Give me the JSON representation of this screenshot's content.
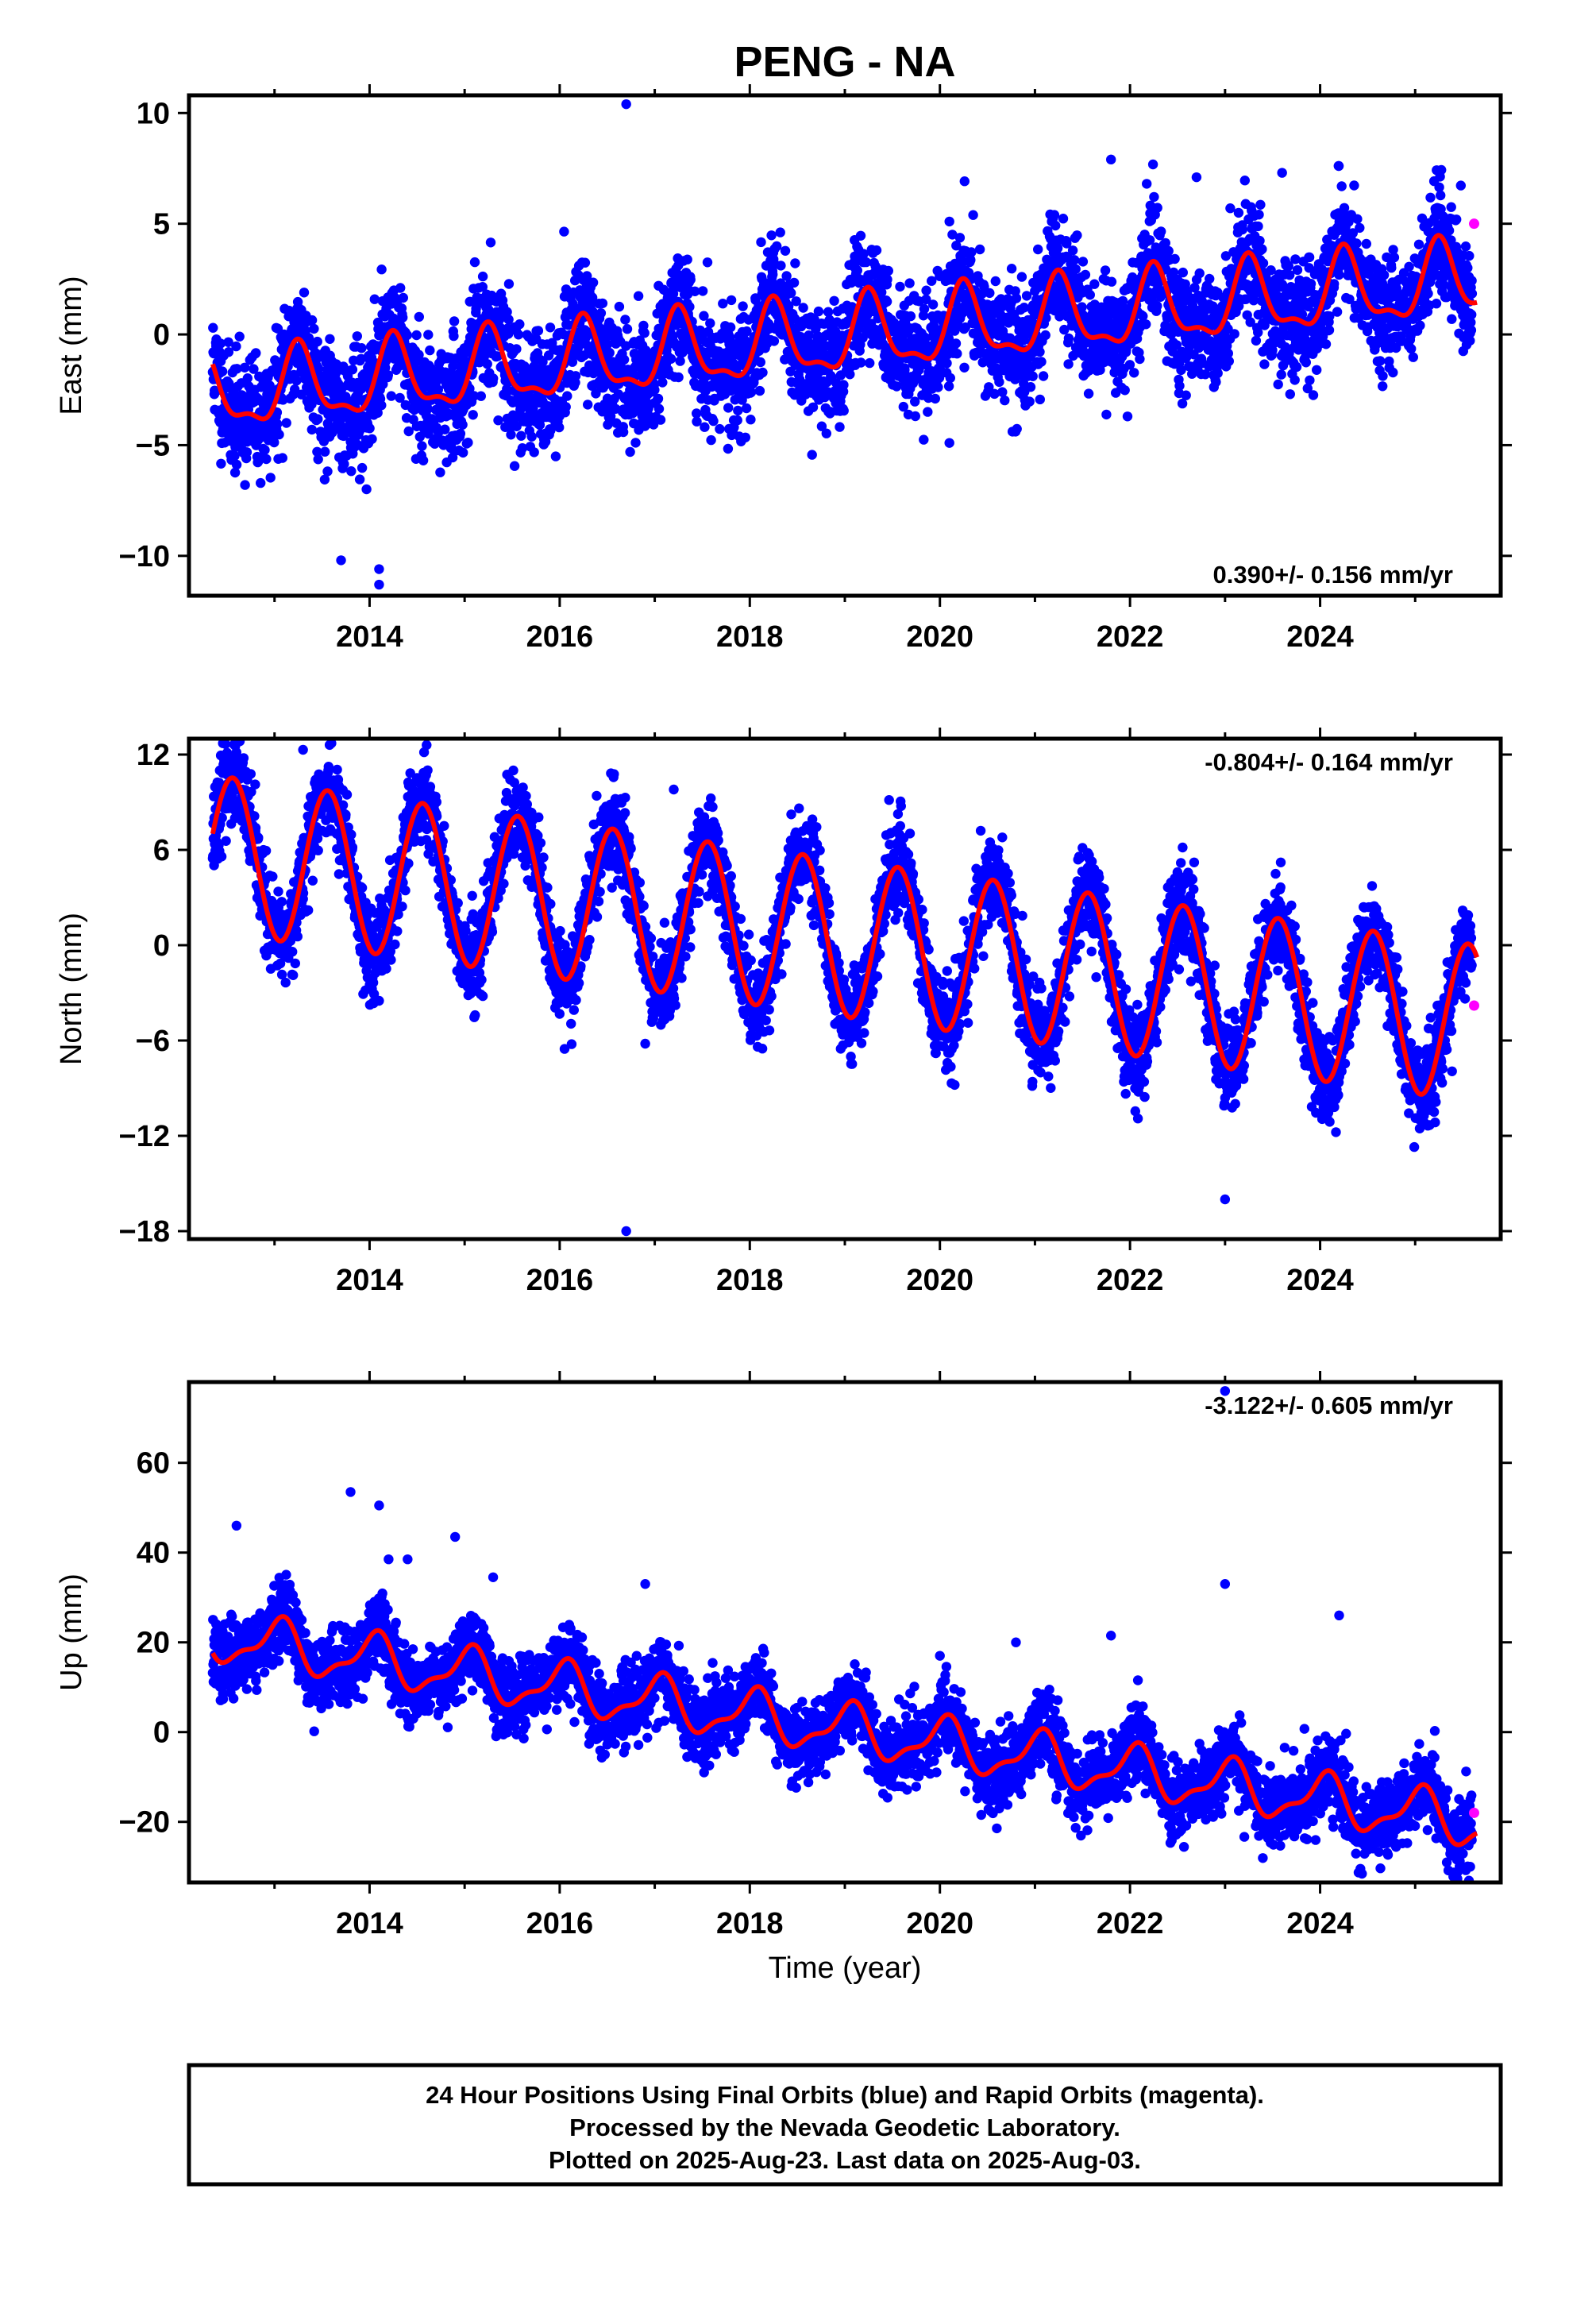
{
  "title": "PENG - NA",
  "x_axis_label": "Time (year)",
  "footer": {
    "line1": "24 Hour Positions Using Final Orbits (blue) and Rapid Orbits (magenta).",
    "line2": "Processed by the Nevada Geodetic Laboratory.",
    "line3": "Plotted on 2025-Aug-23. Last data on 2025-Aug-03."
  },
  "colors": {
    "final_orbits": "#0000ff",
    "rapid_orbits": "#ff00ff",
    "model_fit": "#ff0000",
    "frame": "#000000"
  },
  "chart_data": [
    {
      "type": "scatter",
      "ylabel": "East (mm)",
      "rate": "0.390+/- 0.156 mm/yr",
      "rate_position": "bottom-right",
      "xlim": [
        2012.1,
        2025.9
      ],
      "ylim": [
        -11.8,
        10.8
      ],
      "x_ticks": [
        2014,
        2016,
        2018,
        2020,
        2022,
        2024
      ],
      "y_ticks": [
        10,
        5,
        0,
        -5,
        -10
      ],
      "y_tick_labels": [
        "10",
        "5",
        "0",
        "−5",
        "−10"
      ],
      "grid": false,
      "fit": {
        "t0": 2018.9,
        "offset": -0.2,
        "trend": 0.39,
        "annual": [
          -0.05,
          1.6
        ],
        "semiannual": [
          -0.6,
          0.1
        ],
        "start": 2012.35,
        "end": 2025.65
      },
      "final_orbits": {
        "start": 2012.35,
        "end": 2025.6,
        "scatter_mm": 1.3,
        "seed": 11
      },
      "outliers": [
        [
          2016.7,
          10.4
        ],
        [
          2014.1,
          -11.3
        ],
        [
          2014.1,
          -10.6
        ],
        [
          2013.7,
          -10.2
        ],
        [
          2020.1,
          -4.9
        ],
        [
          2021.8,
          7.9
        ],
        [
          2022.7,
          7.1
        ],
        [
          2020.1,
          5.1
        ],
        [
          2023.6,
          7.3
        ]
      ],
      "rapid_orbits": [
        [
          2025.62,
          5.0
        ]
      ]
    },
    {
      "type": "scatter",
      "ylabel": "North (mm)",
      "rate": "-0.804+/- 0.164 mm/yr",
      "rate_position": "top-right",
      "xlim": [
        2012.1,
        2025.9
      ],
      "ylim": [
        -18.5,
        13.0
      ],
      "x_ticks": [
        2014,
        2016,
        2018,
        2020,
        2022,
        2024
      ],
      "y_ticks": [
        12,
        6,
        0,
        -6,
        -12,
        -18
      ],
      "y_tick_labels": [
        "12",
        "6",
        "0",
        "−6",
        "−12",
        "−18"
      ],
      "grid": false,
      "fit": {
        "t0": 2018.9,
        "offset": 0.5,
        "trend": -0.804,
        "annual": [
          -4.6,
          -1.8
        ],
        "semiannual": [
          0.0,
          0.0
        ],
        "start": 2012.35,
        "end": 2025.65
      },
      "final_orbits": {
        "start": 2012.35,
        "end": 2025.6,
        "scatter_mm": 1.4,
        "seed": 23
      },
      "outliers": [
        [
          2016.7,
          -18.0
        ],
        [
          2023.0,
          -16.0
        ],
        [
          2016.9,
          -6.2
        ],
        [
          2013.3,
          12.3
        ],
        [
          2014.6,
          12.6
        ],
        [
          2014.1,
          -3.5
        ],
        [
          2017.2,
          9.8
        ]
      ],
      "rapid_orbits": [
        [
          2025.62,
          -3.8
        ]
      ]
    },
    {
      "type": "scatter",
      "ylabel": "Up (mm)",
      "rate": "-3.122+/- 0.605 mm/yr",
      "rate_position": "top-right",
      "xlim": [
        2012.1,
        2025.9
      ],
      "ylim": [
        -33.5,
        78.0
      ],
      "x_ticks": [
        2014,
        2016,
        2018,
        2020,
        2022,
        2024
      ],
      "y_ticks": [
        60,
        40,
        20,
        0,
        -20
      ],
      "y_tick_labels": [
        "60",
        "40",
        "20",
        "0",
        "−20"
      ],
      "grid": false,
      "fit": {
        "t0": 2018.9,
        "offset": 0.8,
        "trend": -3.122,
        "annual": [
          5.0,
          1.5
        ],
        "semiannual": [
          0.0,
          2.0
        ],
        "start": 2012.35,
        "end": 2025.65
      },
      "final_orbits": {
        "start": 2012.35,
        "end": 2025.6,
        "scatter_mm": 4.0,
        "seed": 37
      },
      "outliers": [
        [
          2013.8,
          53.5
        ],
        [
          2014.1,
          50.5
        ],
        [
          2014.2,
          38.5
        ],
        [
          2014.4,
          38.5
        ],
        [
          2014.9,
          43.5
        ],
        [
          2012.6,
          46.0
        ],
        [
          2023.0,
          76.0
        ],
        [
          2023.0,
          33.0
        ],
        [
          2024.2,
          26.0
        ],
        [
          2021.8,
          21.5
        ],
        [
          2016.9,
          33.0
        ],
        [
          2015.3,
          34.5
        ],
        [
          2020.0,
          17.0
        ],
        [
          2020.8,
          20.0
        ]
      ],
      "rapid_orbits": [
        [
          2025.62,
          -18.0
        ]
      ]
    }
  ]
}
